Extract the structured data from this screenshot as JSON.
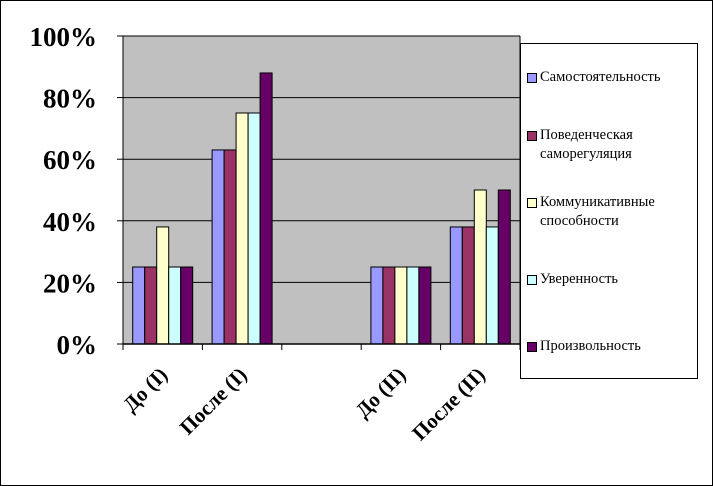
{
  "chart_data": {
    "type": "bar",
    "categories": [
      "До (I)",
      "После (I)",
      "",
      "До (II)",
      "После (II)"
    ],
    "ylim": [
      0,
      1
    ],
    "ytick_values": [
      0,
      0.2,
      0.4,
      0.6,
      0.8,
      1.0
    ],
    "ytick_labels": [
      "0%",
      "20%",
      "40%",
      "60%",
      "80%",
      "100%"
    ],
    "grid": true,
    "legend_position": "right",
    "plot_background": "#c0c0c0",
    "series": [
      {
        "name": "Самостоятельность",
        "color": "#9999ff",
        "values": [
          0.25,
          0.63,
          null,
          0.25,
          0.38
        ]
      },
      {
        "name": "Поведенческая\nсаморегуляция",
        "color": "#993366",
        "values": [
          0.25,
          0.63,
          null,
          0.25,
          0.38
        ]
      },
      {
        "name": "Коммуникативные\nспособности",
        "color": "#ffffcc",
        "values": [
          0.38,
          0.75,
          null,
          0.25,
          0.5
        ]
      },
      {
        "name": "Уверенность",
        "color": "#ccffff",
        "values": [
          0.25,
          0.75,
          null,
          0.25,
          0.38
        ]
      },
      {
        "name": "Произвольность",
        "color": "#660066",
        "values": [
          0.25,
          0.88,
          null,
          0.25,
          0.5
        ]
      }
    ]
  }
}
